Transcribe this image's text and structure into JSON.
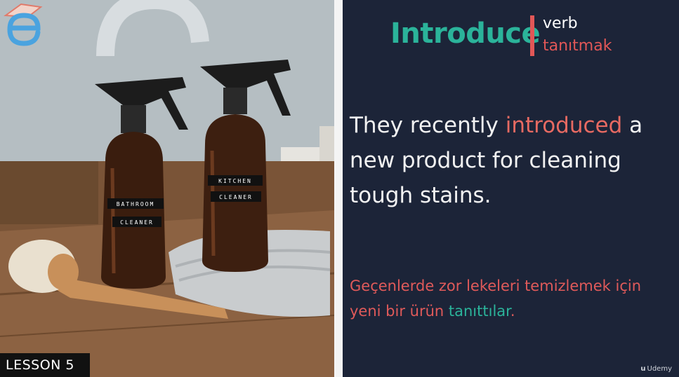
{
  "lesson": {
    "label": "LESSON 5"
  },
  "logo": {
    "icon": "e-letter-logo-icon",
    "color": "#4aa3df"
  },
  "photo": {
    "bottle_left_label_1": "BATHROOM",
    "bottle_left_label_2": "CLEANER",
    "bottle_right_label_1": "KITCHEN",
    "bottle_right_label_2": "CLEANER"
  },
  "vocab": {
    "word": "Introduce",
    "part_of_speech": "verb",
    "translation": "tanıtmak",
    "accent_teal": "#2bb39a",
    "accent_red": "#e15757"
  },
  "example_en": {
    "before": "They recently ",
    "highlight": "introduced",
    "after": " a new product for cleaning tough stains."
  },
  "example_tr": {
    "before": "Geçenlerde zor lekeleri temizlemek için yeni bir ürün ",
    "highlight": "tanıttılar",
    "after": "."
  },
  "watermark": {
    "label": "Udemy"
  }
}
